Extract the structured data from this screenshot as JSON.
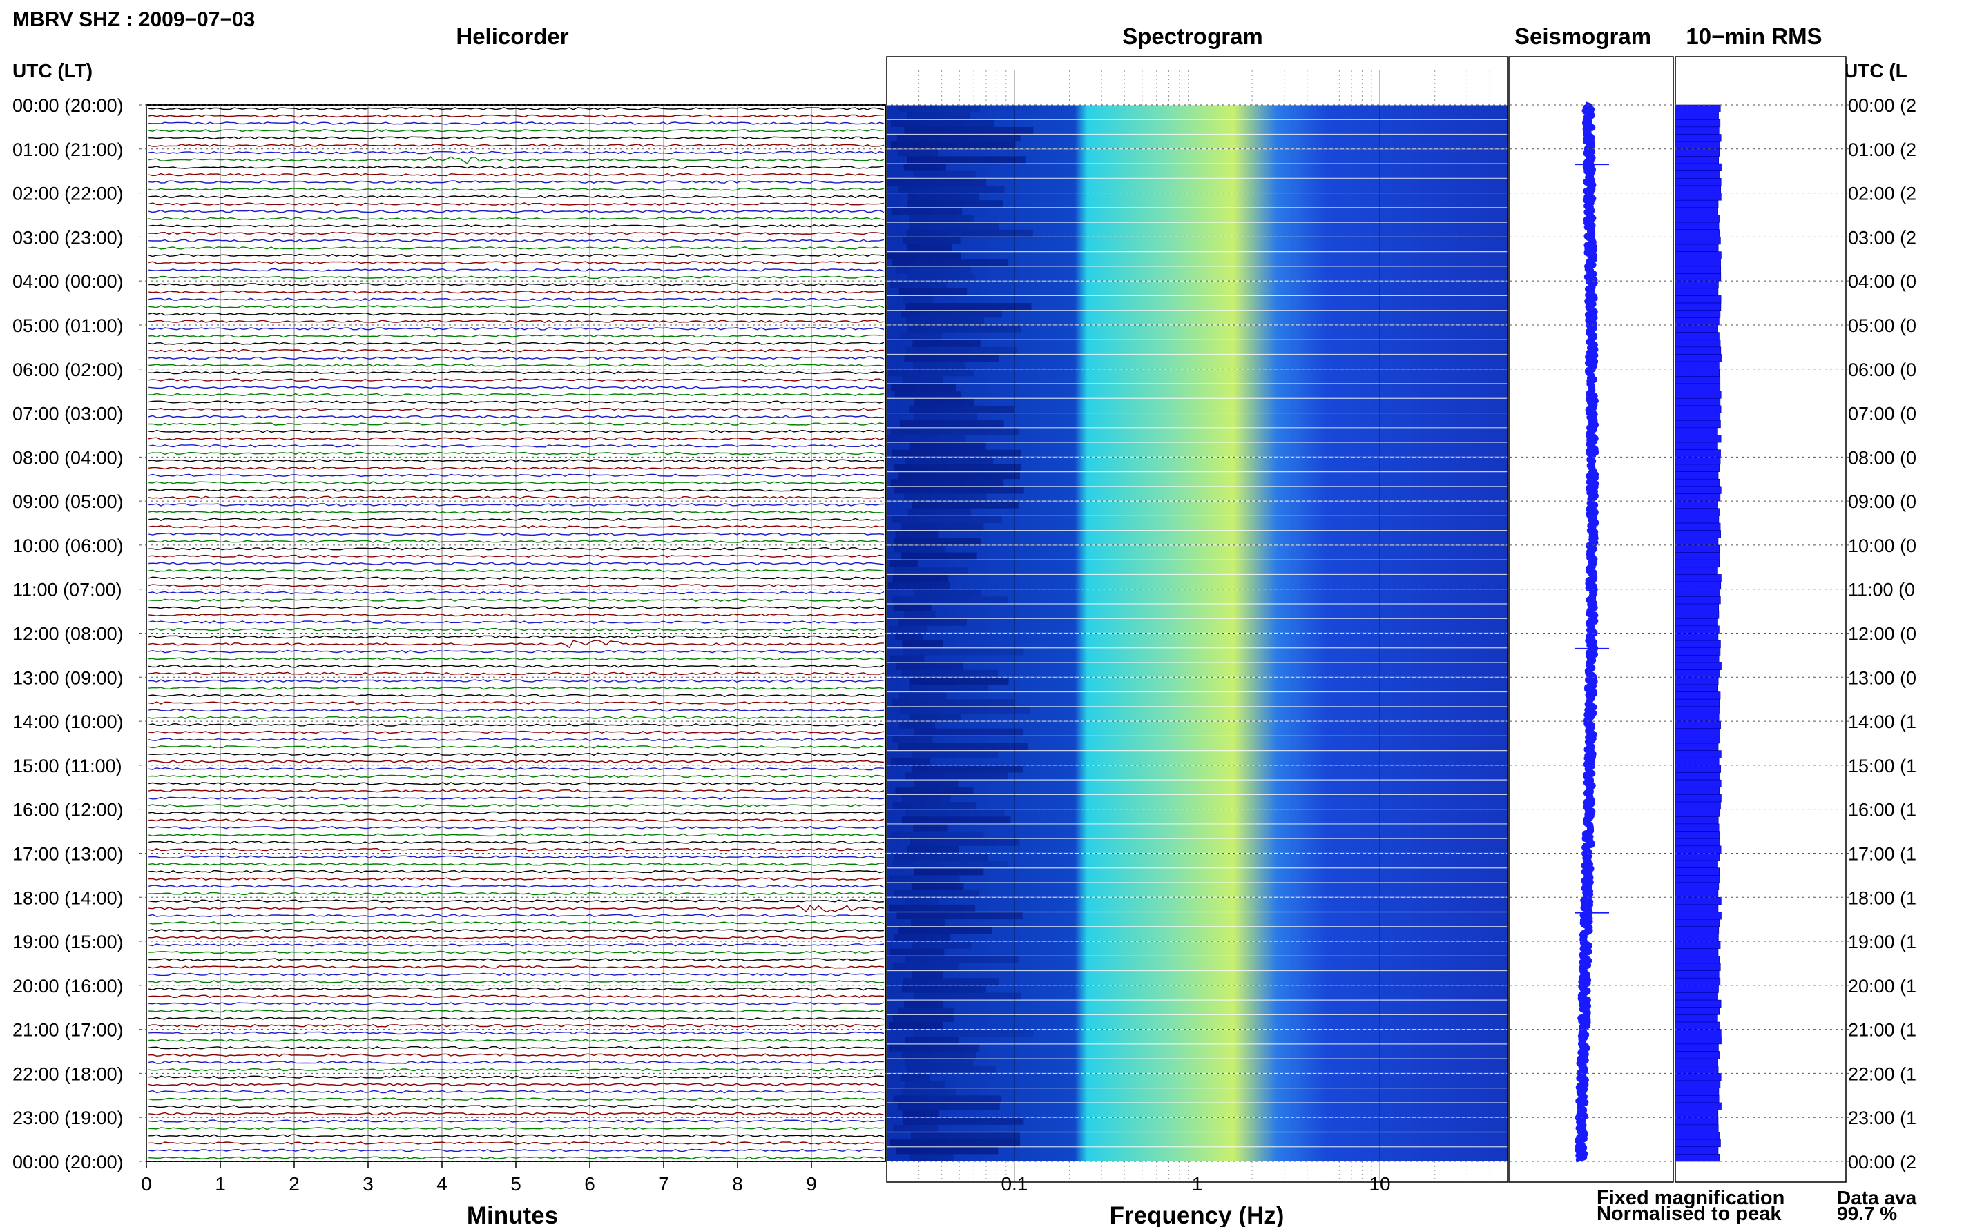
{
  "header": {
    "station_title": "MBRV SHZ : 2009−07−03"
  },
  "panels": {
    "helicorder_title": "Helicorder",
    "spectrogram_title": "Spectrogram",
    "seismogram_title": "Seismogram",
    "rms_title": "10−min RMS"
  },
  "axes": {
    "left_time_label": "UTC (LT)",
    "right_time_label": "UTC (L",
    "minutes_label": "Minutes",
    "frequency_label": "Frequency (Hz)"
  },
  "legend": {
    "fixed": "Fixed magnification",
    "normalised": "Normalised to peak",
    "fixed_color": "#1a1aff",
    "normalised_color": "#ff1a1a"
  },
  "availability": {
    "label": "Data ava",
    "value": "99.7 %"
  },
  "colors": {
    "trace_cycle": [
      "#000000",
      "#8b0000",
      "#1a1acc",
      "#008000"
    ],
    "spectrogram_low": "#0a2fb0",
    "spectrogram_mid": "#2ad0e8",
    "spectrogram_high": "#c8f070",
    "seismogram": "#1a1aff",
    "rms": "#1a1aff"
  },
  "chart_data": {
    "type": "heatmap",
    "hour_labels_left": [
      "00:00 (20:00)",
      "01:00 (21:00)",
      "02:00 (22:00)",
      "03:00 (23:00)",
      "04:00 (00:00)",
      "05:00 (01:00)",
      "06:00 (02:00)",
      "07:00 (03:00)",
      "08:00 (04:00)",
      "09:00 (05:00)",
      "10:00 (06:00)",
      "11:00 (07:00)",
      "12:00 (08:00)",
      "13:00 (09:00)",
      "14:00 (10:00)",
      "15:00 (11:00)",
      "16:00 (12:00)",
      "17:00 (13:00)",
      "18:00 (14:00)",
      "19:00 (15:00)",
      "20:00 (16:00)",
      "21:00 (17:00)",
      "22:00 (18:00)",
      "23:00 (19:00)",
      "00:00 (20:00)"
    ],
    "hour_labels_right": [
      "00:00 (2",
      "01:00 (2",
      "02:00 (2",
      "03:00 (2",
      "04:00 (0",
      "05:00 (0",
      "06:00 (0",
      "07:00 (0",
      "08:00 (0",
      "09:00 (0",
      "10:00 (0",
      "11:00 (0",
      "12:00 (0",
      "13:00 (0",
      "14:00 (1",
      "15:00 (1",
      "16:00 (1",
      "17:00 (1",
      "18:00 (1",
      "19:00 (1",
      "20:00 (1",
      "21:00 (1",
      "22:00 (1",
      "23:00 (1",
      "00:00 (2"
    ],
    "minute_ticks": [
      "0",
      "1",
      "2",
      "3",
      "4",
      "5",
      "6",
      "7",
      "8",
      "9"
    ],
    "minutes_range": [
      0,
      10
    ],
    "frequency_ticks": [
      "0.1",
      "1",
      "10"
    ],
    "frequency_range": [
      0.02,
      50
    ],
    "frequency_scale": "log",
    "rows_per_hour": 6,
    "spectrogram_peak_hz": [
      0.25,
      2.0
    ],
    "events": [
      {
        "hour": 1,
        "minute": 4.2,
        "note": "event"
      },
      {
        "hour": 12,
        "minute": 6.0,
        "note": "event"
      },
      {
        "hour": 18,
        "minute": 9.2,
        "note": "event"
      }
    ],
    "rms_level": 0.9
  }
}
